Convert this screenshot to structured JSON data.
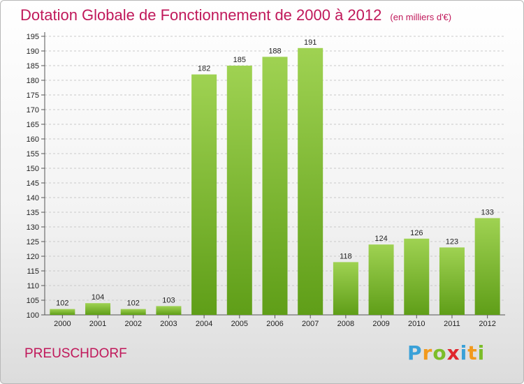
{
  "chart_data": {
    "type": "bar",
    "title": "Dotation Globale de Fonctionnement de 2000 à 2012",
    "unit_note": "(en milliers d'€)",
    "categories": [
      "2000",
      "2001",
      "2002",
      "2003",
      "2004",
      "2005",
      "2006",
      "2007",
      "2008",
      "2009",
      "2010",
      "2011",
      "2012"
    ],
    "values": [
      102,
      104,
      102,
      103,
      182,
      185,
      188,
      191,
      118,
      124,
      126,
      123,
      133
    ],
    "ylim": [
      100,
      195
    ],
    "yticks": [
      100,
      105,
      110,
      115,
      120,
      125,
      130,
      135,
      140,
      145,
      150,
      155,
      160,
      165,
      170,
      175,
      180,
      185,
      190,
      195
    ],
    "grid": true,
    "bar_color": "#7bbf2f"
  },
  "location": "PREUSCHDORF",
  "logo_text": "Proxiti"
}
